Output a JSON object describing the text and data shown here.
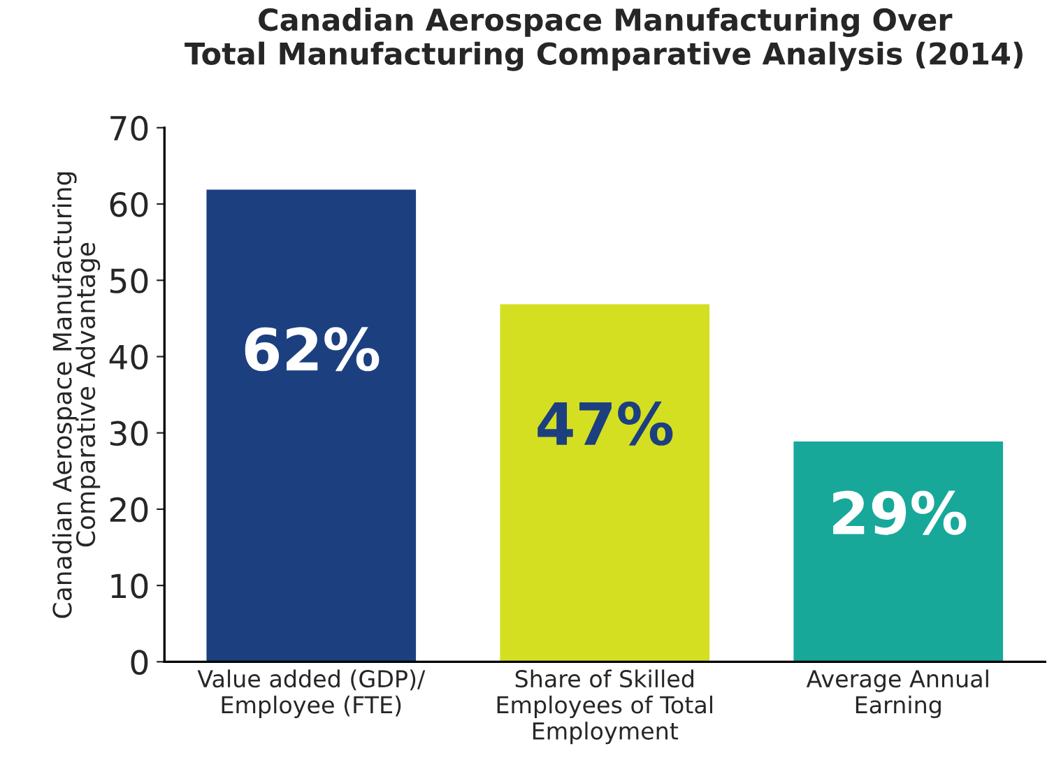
{
  "chart_data": {
    "type": "bar",
    "title": "Canadian Aerospace Manufacturing Over\nTotal Manufacturing Comparative Analysis (2014)",
    "ylabel": "Canadian Aerospace Manufacturing\nComparative Advantage",
    "categories": [
      "Value added (GDP)/\nEmployee (FTE)",
      "Share of Skilled\nEmployees of Total\nEmployment",
      "Average Annual\nEarning"
    ],
    "values": [
      62,
      47,
      29
    ],
    "colors": [
      "#1c3f80",
      "#d4df22",
      "#17a89a"
    ],
    "value_labels": [
      "62%",
      "47%",
      "29%"
    ],
    "ylim": [
      0,
      70
    ],
    "yticks": [
      0,
      10,
      20,
      30,
      40,
      50,
      60,
      70
    ],
    "grid": false,
    "legend": false
  }
}
